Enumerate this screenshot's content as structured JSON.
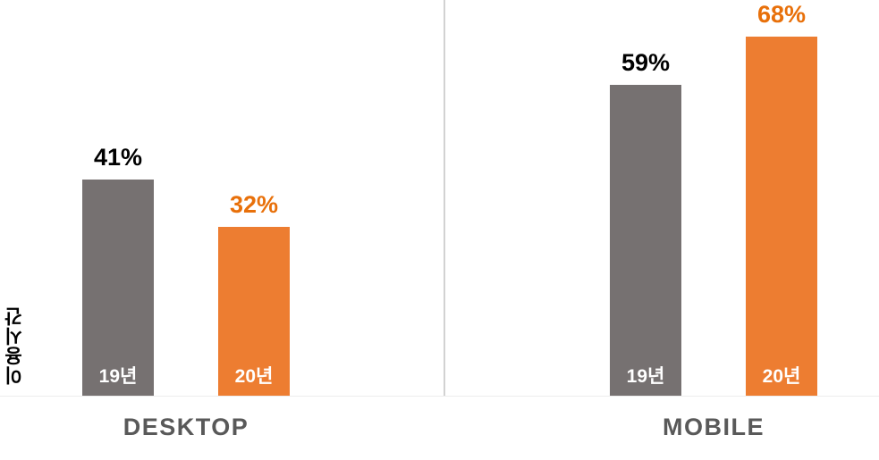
{
  "chart_data": {
    "type": "bar",
    "title": "",
    "ylabel": "이용시간",
    "categories": [
      "DESKTOP",
      "MOBILE"
    ],
    "series": [
      {
        "name": "19년",
        "color": "#767171",
        "values": [
          41,
          59
        ]
      },
      {
        "name": "20년",
        "color": "#ED7D31",
        "values": [
          32,
          68
        ]
      }
    ],
    "ylim": [
      0,
      75
    ],
    "grid": false,
    "legend": "none",
    "value_label_format": "percent",
    "bars": [
      {
        "category": "DESKTOP",
        "series": "19년",
        "value": 41,
        "display": "41%",
        "bar_color": "#767171",
        "label_color": "#000000"
      },
      {
        "category": "DESKTOP",
        "series": "20년",
        "value": 32,
        "display": "32%",
        "bar_color": "#ED7D31",
        "label_color": "#E8700A"
      },
      {
        "category": "MOBILE",
        "series": "19년",
        "value": 59,
        "display": "59%",
        "bar_color": "#767171",
        "label_color": "#000000"
      },
      {
        "category": "MOBILE",
        "series": "20년",
        "value": 68,
        "display": "68%",
        "bar_color": "#ED7D31",
        "label_color": "#E8700A"
      }
    ]
  },
  "colors": {
    "background": "#ffffff",
    "divider": "#d2d2d2",
    "baseline": "#ececec",
    "category_label": "#595959",
    "bar_series_label": "#ffffff"
  }
}
